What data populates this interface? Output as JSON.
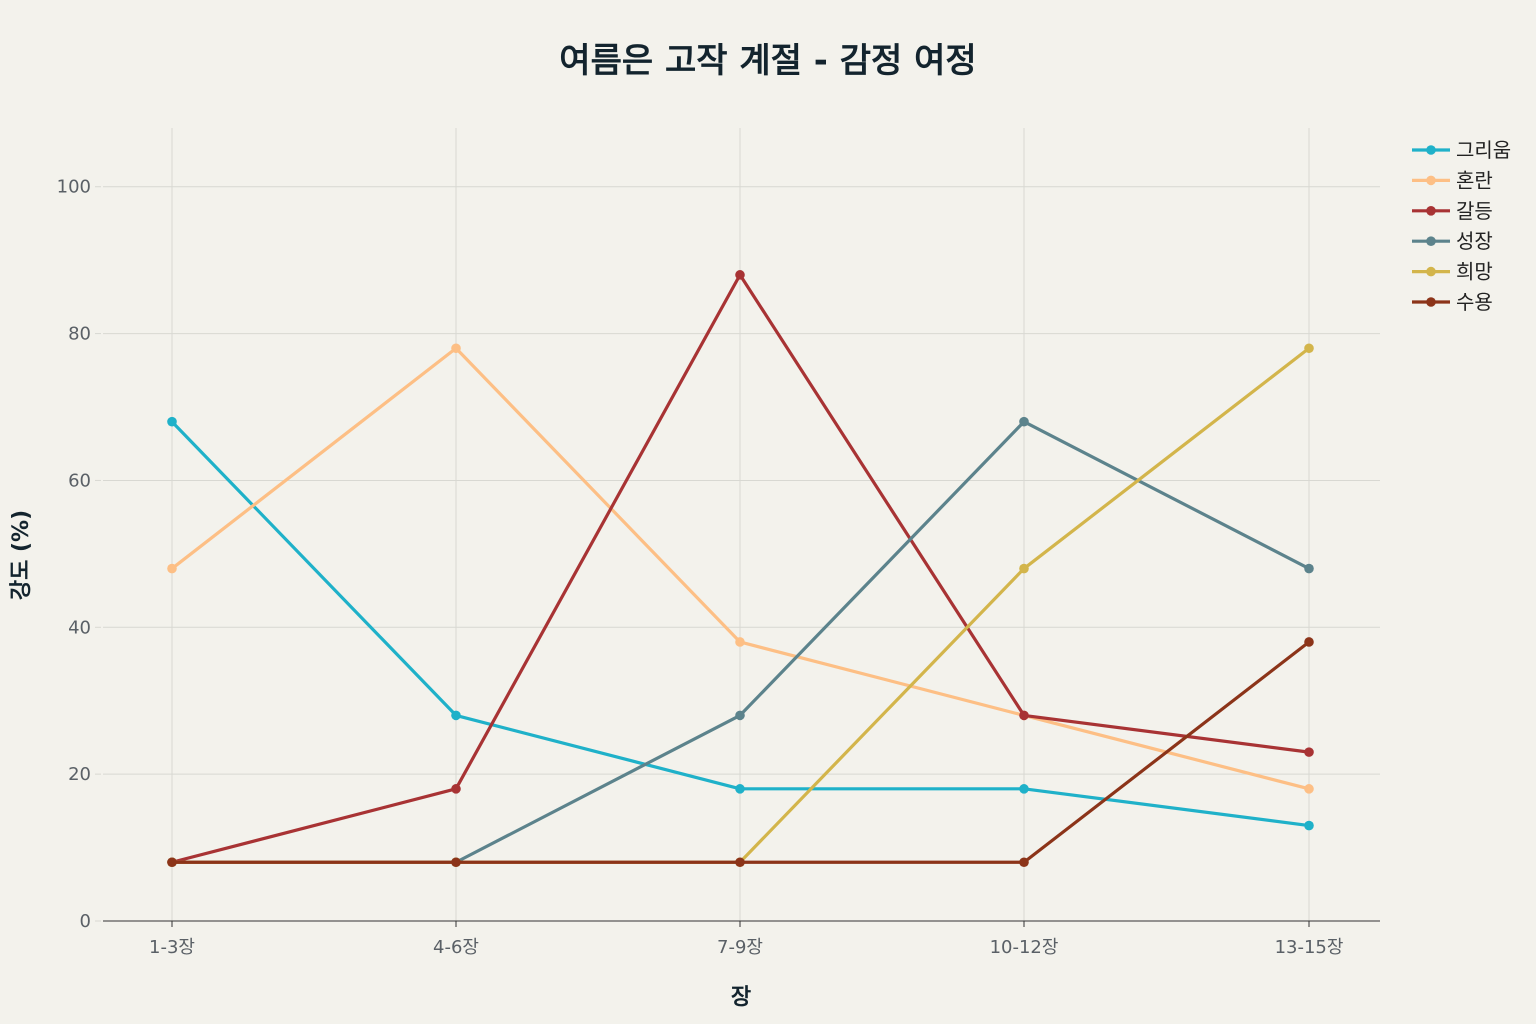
{
  "chart_data": {
    "type": "line",
    "title": "여름은 고작 계절 - 감정 여정",
    "xlabel": "장",
    "ylabel": "강도 (%)",
    "categories": [
      "1-3장",
      "4-6장",
      "7-9장",
      "10-12장",
      "13-15장"
    ],
    "ylim": [
      0,
      108
    ],
    "yticks": [
      0,
      20,
      40,
      60,
      80,
      100
    ],
    "grid": true,
    "legend_position": "top-right",
    "series": [
      {
        "name": "그리움",
        "color": "#1fb1c9",
        "values": [
          68,
          28,
          18,
          18,
          13
        ]
      },
      {
        "name": "혼란",
        "color": "#fdbf85",
        "values": [
          48,
          78,
          38,
          28,
          18
        ]
      },
      {
        "name": "갈등",
        "color": "#a83334",
        "values": [
          8,
          18,
          88,
          28,
          23
        ]
      },
      {
        "name": "성장",
        "color": "#5c838c",
        "values": [
          8,
          8,
          28,
          68,
          48
        ]
      },
      {
        "name": "희망",
        "color": "#d3b54b",
        "values": [
          8,
          8,
          8,
          48,
          78
        ]
      },
      {
        "name": "수용",
        "color": "#8c3419",
        "values": [
          8,
          8,
          8,
          8,
          38
        ]
      }
    ]
  }
}
